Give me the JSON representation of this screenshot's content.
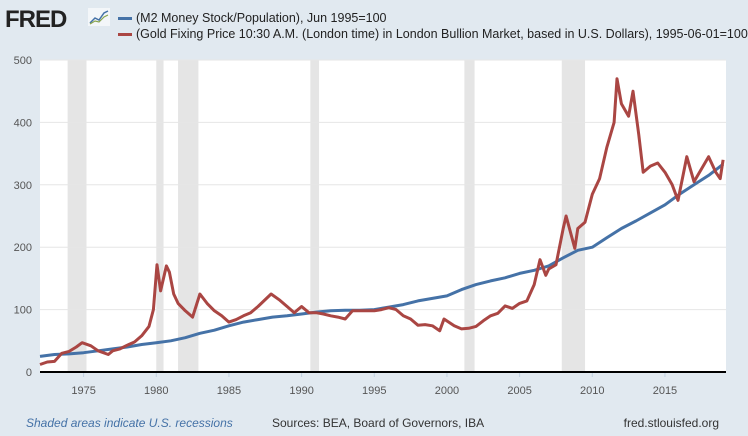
{
  "header": {
    "logo": "FRED",
    "logo_icon": "chart-line-icon"
  },
  "footer": {
    "recession_note": "Shaded areas indicate U.S. recessions",
    "sources": "Sources: BEA, Board of Governors, IBA",
    "site": "fred.stlouisfed.org"
  },
  "chart_data": {
    "type": "line",
    "title": "",
    "xlabel": "",
    "ylabel": "",
    "xlim": [
      1972.0,
      2019.2
    ],
    "ylim": [
      0,
      500
    ],
    "x_ticks": [
      "1975",
      "1980",
      "1985",
      "1990",
      "1995",
      "2000",
      "2005",
      "2010",
      "2015"
    ],
    "y_ticks": [
      "0",
      "100",
      "200",
      "300",
      "400",
      "500"
    ],
    "grid": "horizontal",
    "legend_placement": "top",
    "recessions": [
      [
        1973.9,
        1975.2
      ],
      [
        1980.0,
        1980.5
      ],
      [
        1981.5,
        1982.9
      ],
      [
        1990.6,
        1991.2
      ],
      [
        2001.2,
        2001.9
      ],
      [
        2007.9,
        2009.5
      ]
    ],
    "series": [
      {
        "name": "(M2 Money Stock/Population), Jun 1995=100",
        "color": "#4572a7",
        "x": [
          1972,
          1973,
          1974,
          1975,
          1976,
          1977,
          1978,
          1979,
          1980,
          1981,
          1982,
          1983,
          1984,
          1985,
          1986,
          1987,
          1988,
          1989,
          1990,
          1991,
          1992,
          1993,
          1994,
          1995,
          1996,
          1997,
          1998,
          1999,
          2000,
          2001,
          2002,
          2003,
          2004,
          2005,
          2006,
          2007,
          2008,
          2009,
          2010,
          2011,
          2012,
          2013,
          2014,
          2015,
          2016,
          2017,
          2018,
          2019
        ],
        "values": [
          25,
          28,
          29,
          31,
          34,
          37,
          40,
          44,
          47,
          50,
          55,
          62,
          67,
          74,
          80,
          84,
          88,
          90,
          93,
          96,
          98,
          99,
          99,
          100,
          104,
          108,
          114,
          118,
          122,
          132,
          140,
          146,
          151,
          158,
          163,
          170,
          183,
          195,
          200,
          215,
          230,
          242,
          255,
          268,
          285,
          300,
          315,
          333
        ]
      },
      {
        "name": "(Gold Fixing Price 10:30 A.M. (London time) in London Bullion Market, based in U.S. Dollars), 1995-06-01=100",
        "color": "#aa4643",
        "x": [
          1972.0,
          1972.5,
          1973.0,
          1973.5,
          1974.0,
          1974.5,
          1974.9,
          1975.5,
          1976.0,
          1976.7,
          1977.0,
          1977.5,
          1978.0,
          1978.5,
          1979.0,
          1979.5,
          1979.8,
          1980.05,
          1980.3,
          1980.7,
          1980.9,
          1981.2,
          1981.5,
          1982.0,
          1982.5,
          1983.0,
          1983.5,
          1984.0,
          1984.5,
          1985.0,
          1985.5,
          1986.0,
          1986.5,
          1987.0,
          1987.9,
          1988.5,
          1989.0,
          1989.5,
          1990.0,
          1990.5,
          1991.0,
          1991.5,
          1992.0,
          1992.5,
          1993.0,
          1993.5,
          1994.0,
          1995.0,
          1995.5,
          1996.0,
          1996.5,
          1997.0,
          1997.5,
          1998.0,
          1998.5,
          1999.0,
          1999.5,
          1999.8,
          2000.5,
          2001.0,
          2001.5,
          2002.0,
          2002.5,
          2003.0,
          2003.5,
          2004.0,
          2004.5,
          2005.0,
          2005.5,
          2006.0,
          2006.4,
          2006.8,
          2007.0,
          2007.5,
          2008.0,
          2008.2,
          2008.8,
          2009.0,
          2009.5,
          2010.0,
          2010.5,
          2011.0,
          2011.5,
          2011.7,
          2012.0,
          2012.5,
          2012.8,
          2013.2,
          2013.5,
          2014.0,
          2014.5,
          2015.0,
          2015.5,
          2015.9,
          2016.5,
          2017.0,
          2017.5,
          2018.0,
          2018.5,
          2018.8,
          2019.0
        ],
        "values": [
          12,
          16,
          17,
          30,
          33,
          40,
          47,
          42,
          34,
          28,
          34,
          37,
          43,
          48,
          58,
          73,
          100,
          172,
          130,
          170,
          160,
          125,
          110,
          98,
          88,
          125,
          110,
          98,
          90,
          80,
          84,
          90,
          95,
          105,
          125,
          115,
          105,
          95,
          105,
          95,
          95,
          93,
          90,
          88,
          85,
          98,
          98,
          98,
          100,
          103,
          100,
          90,
          85,
          75,
          76,
          74,
          66,
          85,
          74,
          69,
          70,
          73,
          82,
          90,
          94,
          106,
          102,
          110,
          114,
          140,
          180,
          155,
          165,
          172,
          230,
          250,
          198,
          230,
          240,
          285,
          310,
          360,
          400,
          470,
          430,
          410,
          450,
          380,
          320,
          330,
          335,
          320,
          300,
          275,
          345,
          305,
          325,
          345,
          320,
          310,
          340
        ]
      }
    ]
  }
}
